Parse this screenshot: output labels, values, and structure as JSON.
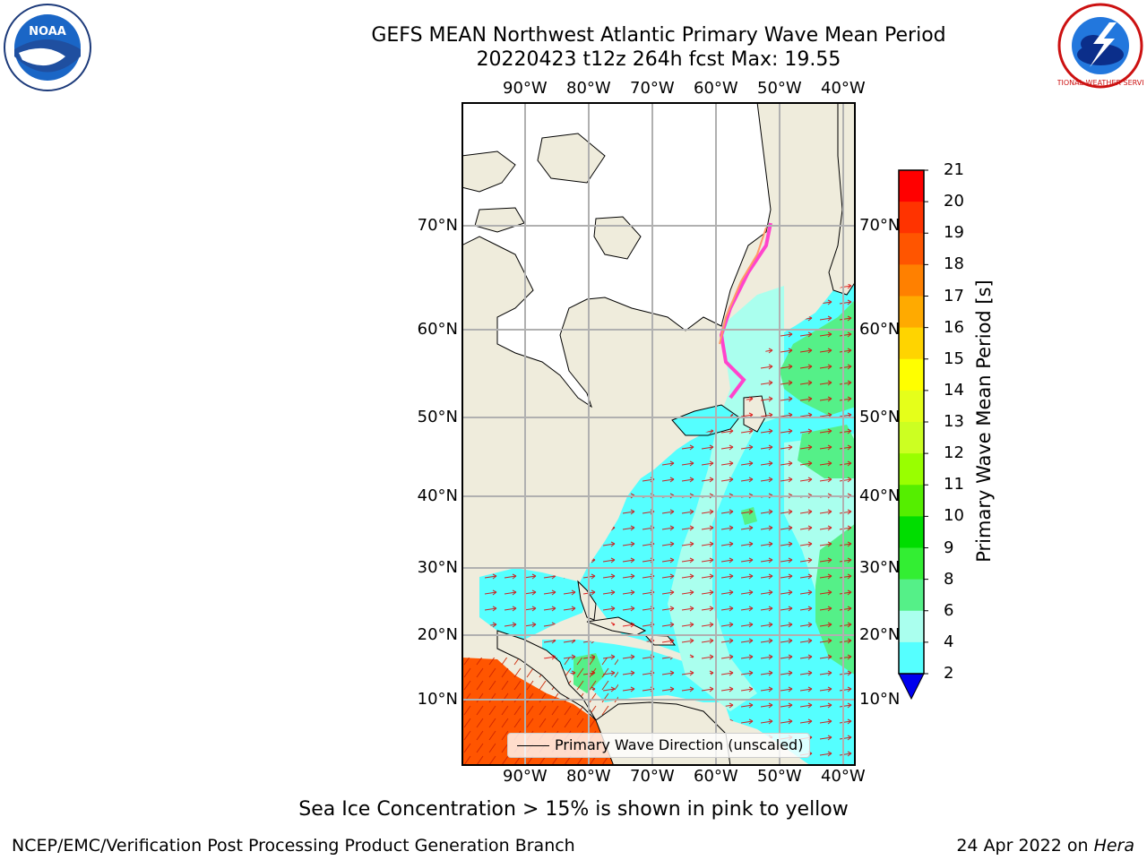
{
  "title": {
    "line1": "GEFS MEAN Northwest Atlantic Primary Wave Mean Period",
    "line2": "20220423 t12z 264h fcst   Max: 19.55"
  },
  "logos": {
    "left": {
      "text": "NOAA",
      "icon": "noaa-logo"
    },
    "right": {
      "text": "NATIONAL WEATHER SERVICE",
      "icon": "nws-logo"
    }
  },
  "map": {
    "lon_labels": [
      "90°W",
      "80°W",
      "70°W",
      "60°W",
      "50°W",
      "40°W"
    ],
    "lat_labels": [
      "70°N",
      "60°N",
      "50°N",
      "40°N",
      "30°N",
      "20°N",
      "10°N"
    ],
    "legend": "Primary Wave Direction (unscaled)",
    "colors": {
      "land": "#efecdc",
      "ice_free_land": "#ffffff",
      "arrows": "#dd0000",
      "grid": "#b0b0b0"
    }
  },
  "colorbar": {
    "label": "Primary Wave Mean Period [s]",
    "ticks": [
      "21",
      "20",
      "19",
      "18",
      "17",
      "16",
      "15",
      "14",
      "13",
      "12",
      "11",
      "10",
      "9",
      "8",
      "6",
      "4",
      "2"
    ],
    "colors": [
      "#ff0000",
      "#ff3300",
      "#ff5500",
      "#ff8000",
      "#ffaa00",
      "#ffd400",
      "#ffff00",
      "#e5ff1a",
      "#ccff22",
      "#99ff00",
      "#55ee00",
      "#00dd00",
      "#33ee33",
      "#55f088",
      "#aaffee",
      "#55ffff",
      "#00f5ff",
      "#00d5ff",
      "#0077ff",
      "#0000ee"
    ]
  },
  "notes": {
    "ice": "Sea Ice Concentration > 15% is shown in pink to yellow",
    "credit": "NCEP/EMC/Verification Post Processing Product Generation Branch",
    "date": "24 Apr 2022 on ",
    "machine": "Hera"
  }
}
